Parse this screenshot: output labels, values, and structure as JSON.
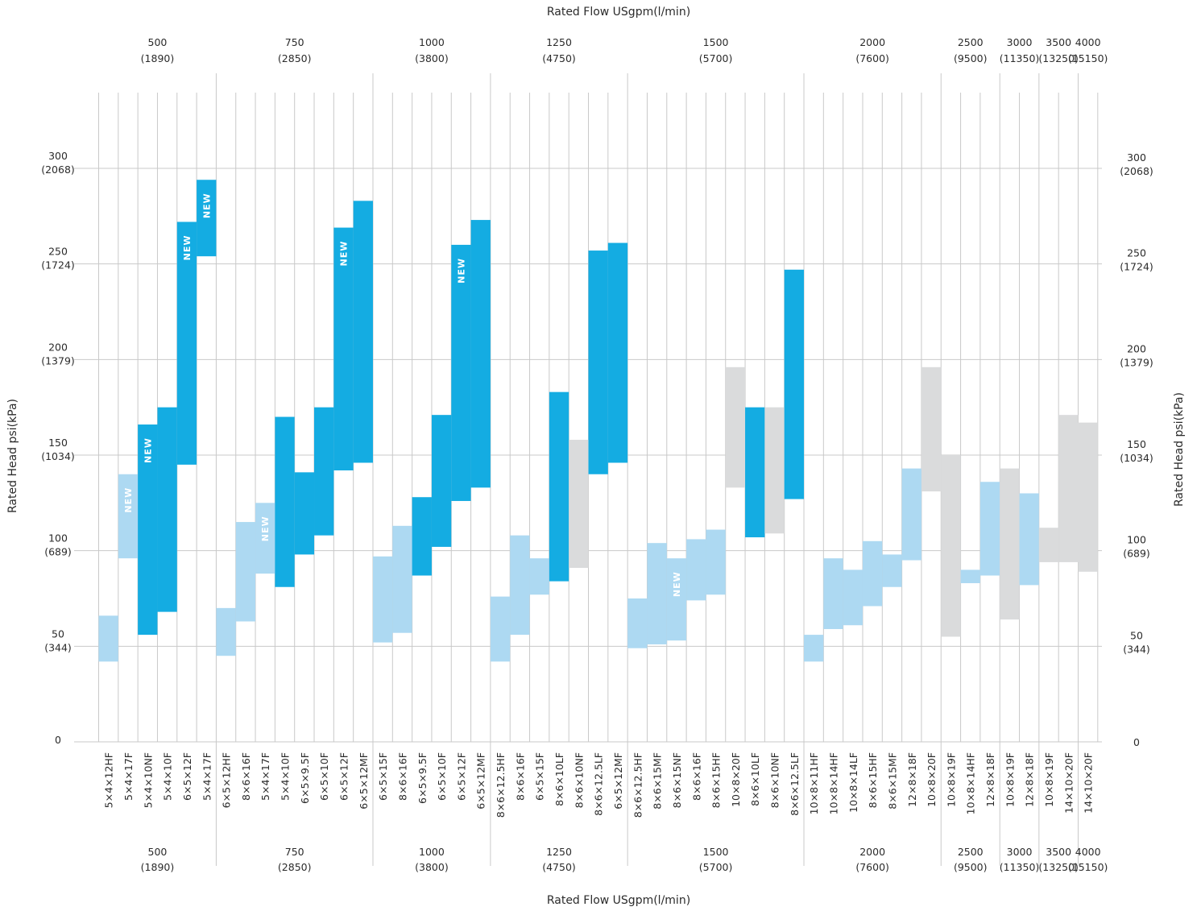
{
  "chart_data": {
    "type": "bar",
    "subtype": "floating-range",
    "top_axis_title": "Rated Flow USgpm(l/min)",
    "bottom_axis_title": "Rated Flow USgpm(l/min)",
    "left_axis_title": "Rated Head psi(kPa)",
    "right_axis_title": "Rated Head psi(kPa)",
    "ylim": [
      0,
      300
    ],
    "y_ticks": [
      {
        "value": 0,
        "psi": "0",
        "kpa": ""
      },
      {
        "value": 50,
        "psi": "50",
        "kpa": "(344)"
      },
      {
        "value": 100,
        "psi": "100",
        "kpa": "(689)"
      },
      {
        "value": 150,
        "psi": "150",
        "kpa": "(1034)"
      },
      {
        "value": 200,
        "psi": "200",
        "kpa": "(1379)"
      },
      {
        "value": 250,
        "psi": "250",
        "kpa": "(1724)"
      },
      {
        "value": 300,
        "psi": "300",
        "kpa": "(2068)"
      }
    ],
    "grid": true,
    "colors": {
      "dark": "#14ace2",
      "light": "#add9f2",
      "gray": "#dadbdc",
      "grid": "#c9c9c9"
    },
    "new_badge": "NEW",
    "flow_groups": [
      {
        "usgpm": "500",
        "lpm": "(1890)",
        "first": 0,
        "count": 6
      },
      {
        "usgpm": "750",
        "lpm": "(2850)",
        "first": 6,
        "count": 8
      },
      {
        "usgpm": "1000",
        "lpm": "(3800)",
        "first": 14,
        "count": 6
      },
      {
        "usgpm": "1250",
        "lpm": "(4750)",
        "first": 20,
        "count": 7
      },
      {
        "usgpm": "1500",
        "lpm": "(5700)",
        "first": 27,
        "count": 9
      },
      {
        "usgpm": "2000",
        "lpm": "(7600)",
        "first": 36,
        "count": 7
      },
      {
        "usgpm": "2500",
        "lpm": "(9500)",
        "first": 43,
        "count": 3
      },
      {
        "usgpm": "3000",
        "lpm": "(11350)",
        "first": 46,
        "count": 2
      },
      {
        "usgpm": "3500",
        "lpm": "(13250)",
        "first": 48,
        "count": 2
      },
      {
        "usgpm": "4000",
        "lpm": "(15150)",
        "first": 50,
        "count": 1
      }
    ],
    "bars": [
      {
        "model": "5×4×12HF",
        "low": 42,
        "high": 66,
        "color": "light",
        "new": false
      },
      {
        "model": "5×4×17F",
        "low": 96,
        "high": 140,
        "color": "light",
        "new": true
      },
      {
        "model": "5×4×10NF",
        "low": 56,
        "high": 166,
        "color": "dark",
        "new": true
      },
      {
        "model": "5×4×10F",
        "low": 68,
        "high": 175,
        "color": "dark",
        "new": false
      },
      {
        "model": "6×5×12F",
        "low": 145,
        "high": 272,
        "color": "dark",
        "new": true
      },
      {
        "model": "5×4×17F",
        "low": 254,
        "high": 294,
        "color": "dark",
        "new": true
      },
      {
        "model": "6×5×12HF",
        "low": 45,
        "high": 70,
        "color": "light",
        "new": false
      },
      {
        "model": "8×6×16F",
        "low": 63,
        "high": 115,
        "color": "light",
        "new": false
      },
      {
        "model": "5×4×17F",
        "low": 88,
        "high": 125,
        "color": "light",
        "new": true
      },
      {
        "model": "5×4×10F",
        "low": 81,
        "high": 170,
        "color": "dark",
        "new": false
      },
      {
        "model": "6×5×9.5F",
        "low": 98,
        "high": 141,
        "color": "dark",
        "new": false
      },
      {
        "model": "6×5×10F",
        "low": 108,
        "high": 175,
        "color": "dark",
        "new": false
      },
      {
        "model": "6×5×12F",
        "low": 142,
        "high": 269,
        "color": "dark",
        "new": true
      },
      {
        "model": "6×5×12MF",
        "low": 146,
        "high": 283,
        "color": "dark",
        "new": false
      },
      {
        "model": "6×5×15F",
        "low": 52,
        "high": 97,
        "color": "light",
        "new": false
      },
      {
        "model": "8×6×16F",
        "low": 57,
        "high": 113,
        "color": "light",
        "new": false
      },
      {
        "model": "6×5×9.5F",
        "low": 87,
        "high": 128,
        "color": "dark",
        "new": false
      },
      {
        "model": "6×5×10F",
        "low": 102,
        "high": 171,
        "color": "dark",
        "new": false
      },
      {
        "model": "6×5×12F",
        "low": 126,
        "high": 260,
        "color": "dark",
        "new": true
      },
      {
        "model": "6×5×12MF",
        "low": 133,
        "high": 273,
        "color": "dark",
        "new": false
      },
      {
        "model": "8×6×12.5HF",
        "low": 42,
        "high": 76,
        "color": "light",
        "new": false
      },
      {
        "model": "8×6×16F",
        "low": 56,
        "high": 108,
        "color": "light",
        "new": false
      },
      {
        "model": "6×5×15F",
        "low": 77,
        "high": 96,
        "color": "light",
        "new": false
      },
      {
        "model": "8×6×10LF",
        "low": 84,
        "high": 183,
        "color": "dark",
        "new": false
      },
      {
        "model": "8×6×10NF",
        "low": 91,
        "high": 158,
        "color": "gray",
        "new": false
      },
      {
        "model": "8×6×12.5LF",
        "low": 140,
        "high": 257,
        "color": "dark",
        "new": false
      },
      {
        "model": "6×5×12MF",
        "low": 146,
        "high": 261,
        "color": "dark",
        "new": false
      },
      {
        "model": "8×6×12.5HF",
        "low": 49,
        "high": 75,
        "color": "light",
        "new": false
      },
      {
        "model": "8×6×15MF",
        "low": 51,
        "high": 104,
        "color": "light",
        "new": false
      },
      {
        "model": "8×6×15NF",
        "low": 53,
        "high": 96,
        "color": "light",
        "new": true
      },
      {
        "model": "8×6×16F",
        "low": 74,
        "high": 106,
        "color": "light",
        "new": false
      },
      {
        "model": "8×6×15HF",
        "low": 77,
        "high": 111,
        "color": "light",
        "new": false
      },
      {
        "model": "10×8×20F",
        "low": 133,
        "high": 196,
        "color": "gray",
        "new": false
      },
      {
        "model": "8×6×10LF",
        "low": 107,
        "high": 175,
        "color": "dark",
        "new": false
      },
      {
        "model": "8×6×10NF",
        "low": 109,
        "high": 175,
        "color": "gray",
        "new": false
      },
      {
        "model": "8×6×12.5LF",
        "low": 127,
        "high": 247,
        "color": "dark",
        "new": false
      },
      {
        "model": "10×8×11HF",
        "low": 42,
        "high": 56,
        "color": "light",
        "new": false
      },
      {
        "model": "10×8×14HF",
        "low": 59,
        "high": 96,
        "color": "light",
        "new": false
      },
      {
        "model": "10×8×14LF",
        "low": 61,
        "high": 90,
        "color": "light",
        "new": false
      },
      {
        "model": "8×6×15HF",
        "low": 71,
        "high": 105,
        "color": "light",
        "new": false
      },
      {
        "model": "8×6×15MF",
        "low": 81,
        "high": 98,
        "color": "light",
        "new": false
      },
      {
        "model": "12×8×18F",
        "low": 95,
        "high": 143,
        "color": "light",
        "new": false
      },
      {
        "model": "10×8×20F",
        "low": 131,
        "high": 196,
        "color": "gray",
        "new": false
      },
      {
        "model": "10×8×19F",
        "low": 55,
        "high": 150,
        "color": "gray",
        "new": false
      },
      {
        "model": "10×8×14HF",
        "low": 83,
        "high": 90,
        "color": "light",
        "new": false
      },
      {
        "model": "12×8×18F",
        "low": 87,
        "high": 136,
        "color": "light",
        "new": false
      },
      {
        "model": "10×8×19F",
        "low": 64,
        "high": 143,
        "color": "gray",
        "new": false
      },
      {
        "model": "12×8×18F",
        "low": 82,
        "high": 130,
        "color": "light",
        "new": false
      },
      {
        "model": "10×8×19F",
        "low": 94,
        "high": 112,
        "color": "gray",
        "new": false
      },
      {
        "model": "14×10×20F",
        "low": 94,
        "high": 171,
        "color": "gray",
        "new": false
      },
      {
        "model": "14×10×20F",
        "low": 89,
        "high": 167,
        "color": "gray",
        "new": false
      }
    ]
  }
}
